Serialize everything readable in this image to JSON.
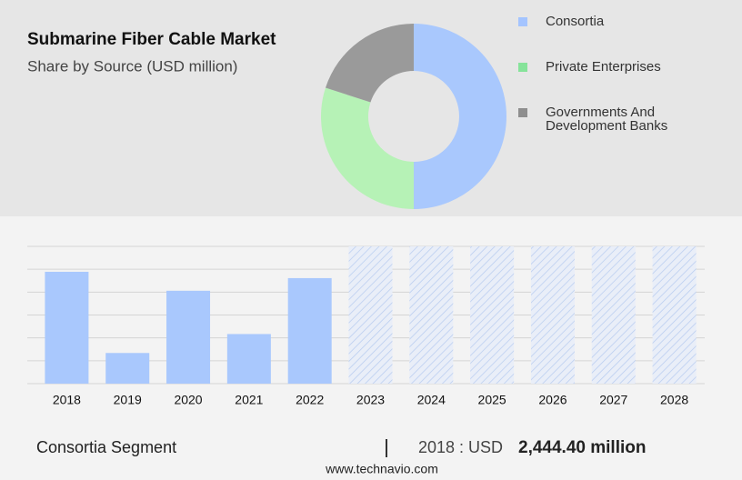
{
  "chart_data": [
    {
      "type": "pie",
      "title": "Submarine Fiber Cable Market",
      "subtitle": "Share by Source (USD million)",
      "donut": true,
      "categories": [
        "Consortia",
        "Private Enterprises",
        "Governments And Development Banks"
      ],
      "values": [
        50,
        30,
        20
      ],
      "colors": [
        "#a9c8fd",
        "#b6f2b6",
        "#9a9a9a"
      ],
      "legend_colors": [
        "#a4c4ff",
        "#86e39a",
        "#8e8e8e"
      ]
    },
    {
      "type": "bar",
      "categories": [
        "2018",
        "2019",
        "2020",
        "2021",
        "2022",
        "2023",
        "2024",
        "2025",
        "2026",
        "2027",
        "2028"
      ],
      "values": [
        2444.4,
        670,
        2030,
        1084,
        2306,
        null,
        null,
        null,
        null,
        null,
        null
      ],
      "color": "#a9c8fd",
      "ylim": [
        0,
        3000
      ],
      "yticks": [
        0,
        500,
        1000,
        1500,
        2000,
        2500,
        3000
      ],
      "grid": true,
      "segment": "Consortia Segment",
      "year_label": "2018 : USD",
      "highlight": "2,444.40 million",
      "source": "www.technavio.com"
    }
  ]
}
